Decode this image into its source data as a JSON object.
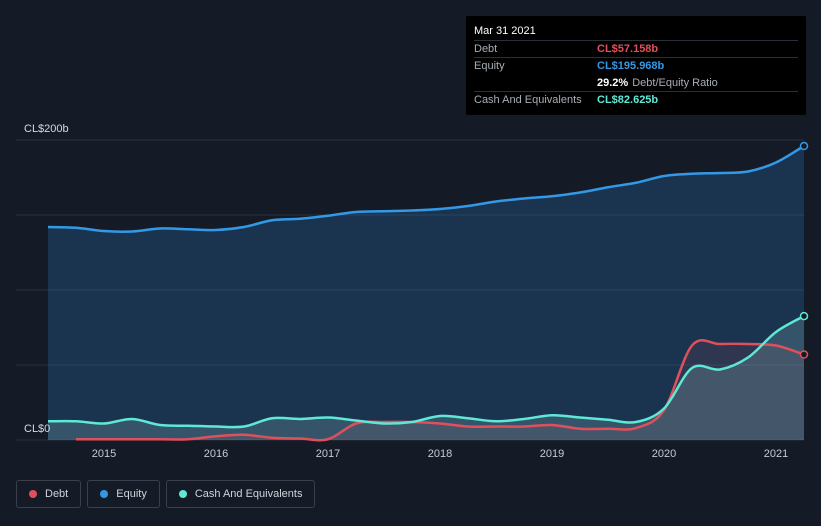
{
  "tooltip": {
    "date": "Mar 31 2021",
    "rows": [
      {
        "label": "Debt",
        "value": "CL$57.158b",
        "color": "#e0505c",
        "extra": ""
      },
      {
        "label": "Equity",
        "value": "CL$195.968b",
        "color": "#3399e6",
        "extra": ""
      },
      {
        "label": "",
        "value": "29.2%",
        "color": "#ffffff",
        "extra": "Debt/Equity Ratio"
      },
      {
        "label": "Cash And Equivalents",
        "value": "CL$82.625b",
        "color": "#5ee8d6",
        "extra": ""
      }
    ]
  },
  "legend": [
    {
      "label": "Debt",
      "color": "#e0505c"
    },
    {
      "label": "Equity",
      "color": "#3399e6"
    },
    {
      "label": "Cash And Equivalents",
      "color": "#5ee8d6"
    }
  ],
  "chart_data": {
    "type": "area",
    "y_top_label": "CL$200b",
    "y_bottom_label": "CL$0",
    "ylim": [
      0,
      200
    ],
    "xlim": [
      2014.5,
      2021.25
    ],
    "xticks": [
      2015,
      2016,
      2017,
      2018,
      2019,
      2020,
      2021
    ],
    "grid": true,
    "legend_position": "bottom-left",
    "series": [
      {
        "name": "Equity",
        "color": "#3399e6",
        "points": [
          [
            2014.5,
            142
          ],
          [
            2014.75,
            141.5
          ],
          [
            2015.0,
            139.3
          ],
          [
            2015.25,
            139
          ],
          [
            2015.5,
            141
          ],
          [
            2015.75,
            140.5
          ],
          [
            2016.0,
            140
          ],
          [
            2016.25,
            142
          ],
          [
            2016.5,
            146.5
          ],
          [
            2016.75,
            147.5
          ],
          [
            2017.0,
            149.5
          ],
          [
            2017.25,
            152
          ],
          [
            2017.5,
            152.5
          ],
          [
            2017.75,
            153
          ],
          [
            2018.0,
            154
          ],
          [
            2018.25,
            156
          ],
          [
            2018.5,
            159
          ],
          [
            2018.75,
            161
          ],
          [
            2019.0,
            162.5
          ],
          [
            2019.25,
            165
          ],
          [
            2019.5,
            168.5
          ],
          [
            2019.75,
            171.5
          ],
          [
            2020.0,
            176
          ],
          [
            2020.25,
            177.5
          ],
          [
            2020.5,
            178
          ],
          [
            2020.75,
            179
          ],
          [
            2021.0,
            185
          ],
          [
            2021.25,
            196
          ]
        ]
      },
      {
        "name": "Debt",
        "color": "#e0505c",
        "points": [
          [
            2014.75,
            0.5
          ],
          [
            2015.0,
            0.5
          ],
          [
            2015.25,
            0.5
          ],
          [
            2015.5,
            0.5
          ],
          [
            2015.75,
            0.5
          ],
          [
            2016.0,
            2.5
          ],
          [
            2016.25,
            3.5
          ],
          [
            2016.5,
            1.5
          ],
          [
            2016.75,
            1
          ],
          [
            2017.0,
            0.5
          ],
          [
            2017.25,
            11
          ],
          [
            2017.5,
            12
          ],
          [
            2017.75,
            12
          ],
          [
            2018.0,
            11
          ],
          [
            2018.25,
            9
          ],
          [
            2018.5,
            9
          ],
          [
            2018.75,
            9
          ],
          [
            2019.0,
            10
          ],
          [
            2019.25,
            7.5
          ],
          [
            2019.5,
            7.5
          ],
          [
            2019.75,
            8
          ],
          [
            2020.0,
            20
          ],
          [
            2020.25,
            63
          ],
          [
            2020.5,
            64
          ],
          [
            2020.75,
            64
          ],
          [
            2021.0,
            63
          ],
          [
            2021.25,
            57
          ]
        ]
      },
      {
        "name": "Cash And Equivalents",
        "color": "#5ee8d6",
        "points": [
          [
            2014.5,
            12.5
          ],
          [
            2014.75,
            12.5
          ],
          [
            2015.0,
            11
          ],
          [
            2015.25,
            14
          ],
          [
            2015.5,
            10
          ],
          [
            2015.75,
            9.5
          ],
          [
            2016.0,
            9
          ],
          [
            2016.25,
            9
          ],
          [
            2016.5,
            14.5
          ],
          [
            2016.75,
            14
          ],
          [
            2017.0,
            15
          ],
          [
            2017.25,
            13
          ],
          [
            2017.5,
            11
          ],
          [
            2017.75,
            12
          ],
          [
            2018.0,
            16
          ],
          [
            2018.25,
            14.5
          ],
          [
            2018.5,
            12.5
          ],
          [
            2018.75,
            14
          ],
          [
            2019.0,
            16.5
          ],
          [
            2019.25,
            15
          ],
          [
            2019.5,
            13.5
          ],
          [
            2019.75,
            12
          ],
          [
            2020.0,
            21
          ],
          [
            2020.25,
            48
          ],
          [
            2020.5,
            47
          ],
          [
            2020.75,
            55
          ],
          [
            2021.0,
            72
          ],
          [
            2021.25,
            82.6
          ]
        ]
      }
    ]
  }
}
